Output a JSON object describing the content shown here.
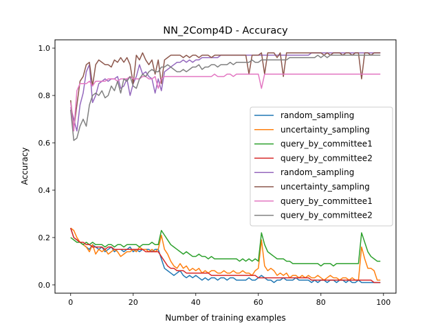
{
  "chart_data": {
    "type": "line",
    "title": "NN_2Comp4D - Accuracy",
    "xlabel": "Number of training examples",
    "ylabel": "Accuracy",
    "xlim": [
      -5,
      104
    ],
    "ylim": [
      -0.035,
      1.035
    ],
    "xticks": [
      0,
      20,
      40,
      60,
      80,
      100
    ],
    "yticks": [
      0.0,
      0.2,
      0.4,
      0.6,
      0.8,
      1.0
    ],
    "xtick_labels": [
      "0",
      "20",
      "40",
      "60",
      "80",
      "100"
    ],
    "ytick_labels": [
      "0.0",
      "0.2",
      "0.4",
      "0.6",
      "0.8",
      "1.0"
    ],
    "grid": false,
    "legend_position": "center-right",
    "x": [
      0,
      1,
      2,
      3,
      4,
      5,
      6,
      7,
      8,
      9,
      10,
      11,
      12,
      13,
      14,
      15,
      16,
      17,
      18,
      19,
      20,
      21,
      22,
      23,
      24,
      25,
      26,
      27,
      28,
      29,
      30,
      31,
      32,
      33,
      34,
      35,
      36,
      37,
      38,
      39,
      40,
      41,
      42,
      43,
      44,
      45,
      46,
      47,
      48,
      49,
      50,
      51,
      52,
      53,
      54,
      55,
      56,
      57,
      58,
      59,
      60,
      61,
      62,
      63,
      64,
      65,
      66,
      67,
      68,
      69,
      70,
      71,
      72,
      73,
      74,
      75,
      76,
      77,
      78,
      79,
      80,
      81,
      82,
      83,
      84,
      85,
      86,
      87,
      88,
      89,
      90,
      91,
      92,
      93,
      94,
      95,
      96,
      97,
      98,
      99
    ],
    "series": [
      {
        "name": "random_sampling",
        "color": "#1f77b4",
        "values": [
          0.24,
          0.2,
          0.19,
          0.18,
          0.17,
          0.16,
          0.15,
          0.17,
          0.16,
          0.15,
          0.16,
          0.14,
          0.15,
          0.16,
          0.14,
          0.15,
          0.15,
          0.14,
          0.15,
          0.16,
          0.14,
          0.15,
          0.14,
          0.15,
          0.15,
          0.15,
          0.14,
          0.15,
          0.15,
          0.11,
          0.07,
          0.06,
          0.05,
          0.04,
          0.05,
          0.06,
          0.04,
          0.03,
          0.04,
          0.03,
          0.04,
          0.03,
          0.02,
          0.03,
          0.02,
          0.03,
          0.03,
          0.02,
          0.03,
          0.03,
          0.02,
          0.03,
          0.03,
          0.02,
          0.02,
          0.02,
          0.02,
          0.03,
          0.02,
          0.02,
          0.03,
          0.04,
          0.03,
          0.02,
          0.02,
          0.01,
          0.02,
          0.02,
          0.03,
          0.02,
          0.02,
          0.02,
          0.03,
          0.02,
          0.02,
          0.02,
          0.02,
          0.01,
          0.02,
          0.01,
          0.02,
          0.02,
          0.01,
          0.02,
          0.02,
          0.01,
          0.02,
          0.02,
          0.01,
          0.02,
          0.01,
          0.01,
          0.02,
          0.01,
          0.01,
          0.01,
          0.01,
          0.01,
          0.01,
          0.01
        ]
      },
      {
        "name": "uncertainty_sampling",
        "color": "#ff7f0e",
        "values": [
          0.24,
          0.23,
          0.2,
          0.18,
          0.17,
          0.16,
          0.14,
          0.17,
          0.13,
          0.15,
          0.14,
          0.15,
          0.13,
          0.14,
          0.15,
          0.14,
          0.12,
          0.13,
          0.14,
          0.14,
          0.15,
          0.14,
          0.16,
          0.15,
          0.15,
          0.14,
          0.15,
          0.14,
          0.15,
          0.21,
          0.15,
          0.13,
          0.1,
          0.08,
          0.07,
          0.09,
          0.07,
          0.08,
          0.06,
          0.07,
          0.06,
          0.07,
          0.05,
          0.06,
          0.05,
          0.06,
          0.06,
          0.05,
          0.05,
          0.06,
          0.05,
          0.05,
          0.06,
          0.05,
          0.05,
          0.06,
          0.05,
          0.05,
          0.04,
          0.06,
          0.07,
          0.19,
          0.08,
          0.06,
          0.07,
          0.06,
          0.04,
          0.05,
          0.04,
          0.05,
          0.03,
          0.04,
          0.04,
          0.03,
          0.04,
          0.03,
          0.04,
          0.03,
          0.03,
          0.04,
          0.03,
          0.02,
          0.03,
          0.04,
          0.03,
          0.03,
          0.02,
          0.03,
          0.03,
          0.02,
          0.03,
          0.02,
          0.02,
          0.16,
          0.11,
          0.07,
          0.07,
          0.06,
          0.02,
          0.02
        ]
      },
      {
        "name": "query_by_committee1",
        "color": "#2ca02c",
        "values": [
          0.2,
          0.19,
          0.18,
          0.18,
          0.17,
          0.18,
          0.17,
          0.18,
          0.17,
          0.17,
          0.17,
          0.16,
          0.17,
          0.17,
          0.16,
          0.17,
          0.17,
          0.16,
          0.17,
          0.17,
          0.17,
          0.17,
          0.16,
          0.17,
          0.17,
          0.17,
          0.18,
          0.17,
          0.17,
          0.23,
          0.21,
          0.19,
          0.17,
          0.16,
          0.15,
          0.14,
          0.13,
          0.14,
          0.13,
          0.12,
          0.12,
          0.13,
          0.12,
          0.12,
          0.11,
          0.12,
          0.11,
          0.11,
          0.11,
          0.11,
          0.11,
          0.11,
          0.11,
          0.11,
          0.1,
          0.11,
          0.1,
          0.11,
          0.1,
          0.11,
          0.1,
          0.22,
          0.17,
          0.14,
          0.13,
          0.12,
          0.11,
          0.11,
          0.11,
          0.1,
          0.1,
          0.09,
          0.09,
          0.09,
          0.09,
          0.09,
          0.09,
          0.09,
          0.09,
          0.09,
          0.08,
          0.09,
          0.09,
          0.09,
          0.08,
          0.09,
          0.09,
          0.09,
          0.09,
          0.09,
          0.09,
          0.09,
          0.09,
          0.22,
          0.18,
          0.14,
          0.12,
          0.11,
          0.1,
          0.1
        ]
      },
      {
        "name": "query_by_committee2",
        "color": "#d62728",
        "values": [
          0.24,
          0.2,
          0.19,
          0.18,
          0.18,
          0.17,
          0.17,
          0.16,
          0.16,
          0.16,
          0.16,
          0.15,
          0.16,
          0.16,
          0.15,
          0.15,
          0.15,
          0.15,
          0.15,
          0.15,
          0.15,
          0.15,
          0.15,
          0.15,
          0.14,
          0.14,
          0.14,
          0.14,
          0.14,
          0.12,
          0.1,
          0.08,
          0.07,
          0.07,
          0.06,
          0.06,
          0.06,
          0.05,
          0.05,
          0.05,
          0.05,
          0.05,
          0.05,
          0.05,
          0.05,
          0.04,
          0.04,
          0.04,
          0.04,
          0.04,
          0.04,
          0.04,
          0.04,
          0.04,
          0.04,
          0.04,
          0.04,
          0.04,
          0.04,
          0.04,
          0.03,
          0.03,
          0.03,
          0.03,
          0.03,
          0.03,
          0.03,
          0.03,
          0.03,
          0.03,
          0.03,
          0.03,
          0.03,
          0.03,
          0.03,
          0.03,
          0.03,
          0.02,
          0.02,
          0.02,
          0.02,
          0.02,
          0.02,
          0.02,
          0.02,
          0.02,
          0.02,
          0.02,
          0.02,
          0.02,
          0.02,
          0.02,
          0.02,
          0.02,
          0.02,
          0.02,
          0.02,
          0.01,
          0.01,
          0.01
        ]
      },
      {
        "name": "random_sampling",
        "color": "#9467bd",
        "values": [
          0.75,
          0.7,
          0.65,
          0.76,
          0.81,
          0.9,
          0.93,
          0.77,
          0.8,
          0.85,
          0.86,
          0.87,
          0.86,
          0.87,
          0.87,
          0.88,
          0.83,
          0.84,
          0.87,
          0.8,
          0.85,
          0.88,
          0.93,
          0.89,
          0.9,
          0.88,
          0.87,
          0.81,
          0.87,
          0.82,
          0.9,
          0.91,
          0.92,
          0.93,
          0.94,
          0.94,
          0.95,
          0.94,
          0.95,
          0.94,
          0.95,
          0.95,
          0.96,
          0.96,
          0.96,
          0.96,
          0.96,
          0.96,
          0.97,
          0.97,
          0.97,
          0.97,
          0.97,
          0.97,
          0.97,
          0.97,
          0.97,
          0.97,
          0.97,
          0.97,
          0.97,
          0.97,
          0.97,
          0.97,
          0.97,
          0.97,
          0.97,
          0.97,
          0.97,
          0.97,
          0.97,
          0.97,
          0.97,
          0.97,
          0.97,
          0.97,
          0.97,
          0.98,
          0.98,
          0.98,
          0.98,
          0.98,
          0.98,
          0.98,
          0.98,
          0.98,
          0.98,
          0.98,
          0.98,
          0.98,
          0.98,
          0.98,
          0.98,
          0.98,
          0.98,
          0.98,
          0.98,
          0.98,
          0.98,
          0.98
        ]
      },
      {
        "name": "uncertainty_sampling",
        "color": "#8c564b",
        "values": [
          0.78,
          0.66,
          0.76,
          0.86,
          0.88,
          0.93,
          0.94,
          0.84,
          0.93,
          0.95,
          0.94,
          0.93,
          0.93,
          0.92,
          0.95,
          0.94,
          0.96,
          0.94,
          0.96,
          0.93,
          0.85,
          0.97,
          0.95,
          0.98,
          0.95,
          0.93,
          0.95,
          0.89,
          0.95,
          0.85,
          0.95,
          0.96,
          0.97,
          0.97,
          0.97,
          0.97,
          0.96,
          0.97,
          0.96,
          0.97,
          0.97,
          0.96,
          0.97,
          0.97,
          0.97,
          0.96,
          0.97,
          0.97,
          0.97,
          0.97,
          0.97,
          0.97,
          0.97,
          0.97,
          0.97,
          0.97,
          0.97,
          0.89,
          0.97,
          0.97,
          0.97,
          0.98,
          0.89,
          0.98,
          0.98,
          0.98,
          0.96,
          0.98,
          0.88,
          0.98,
          0.98,
          0.98,
          0.98,
          0.98,
          0.98,
          0.98,
          0.98,
          0.98,
          0.98,
          0.98,
          0.98,
          0.97,
          0.98,
          0.97,
          0.98,
          0.98,
          0.98,
          0.97,
          0.98,
          0.98,
          0.97,
          0.98,
          0.98,
          0.87,
          0.98,
          0.98,
          0.97,
          0.98,
          0.98,
          0.98
        ]
      },
      {
        "name": "query_by_committee1",
        "color": "#e377c2",
        "values": [
          0.77,
          0.65,
          0.82,
          0.85,
          0.85,
          0.85,
          0.86,
          0.84,
          0.86,
          0.86,
          0.86,
          0.86,
          0.87,
          0.87,
          0.87,
          0.86,
          0.87,
          0.87,
          0.87,
          0.88,
          0.87,
          0.87,
          0.87,
          0.88,
          0.88,
          0.87,
          0.87,
          0.88,
          0.83,
          0.87,
          0.88,
          0.88,
          0.88,
          0.88,
          0.88,
          0.88,
          0.88,
          0.88,
          0.88,
          0.88,
          0.88,
          0.88,
          0.88,
          0.88,
          0.88,
          0.88,
          0.89,
          0.88,
          0.88,
          0.88,
          0.89,
          0.89,
          0.88,
          0.89,
          0.89,
          0.89,
          0.89,
          0.89,
          0.89,
          0.89,
          0.89,
          0.83,
          0.89,
          0.89,
          0.89,
          0.89,
          0.89,
          0.89,
          0.89,
          0.89,
          0.89,
          0.89,
          0.89,
          0.89,
          0.89,
          0.89,
          0.89,
          0.89,
          0.89,
          0.89,
          0.89,
          0.89,
          0.89,
          0.89,
          0.89,
          0.89,
          0.89,
          0.89,
          0.89,
          0.89,
          0.89,
          0.89,
          0.89,
          0.89,
          0.89,
          0.89,
          0.89,
          0.89,
          0.89,
          0.89
        ]
      },
      {
        "name": "query_by_committee2",
        "color": "#7f7f7f",
        "values": [
          0.74,
          0.61,
          0.62,
          0.67,
          0.7,
          0.67,
          0.76,
          0.8,
          0.81,
          0.8,
          0.82,
          0.79,
          0.8,
          0.84,
          0.82,
          0.86,
          0.81,
          0.87,
          0.86,
          0.88,
          0.84,
          0.83,
          0.87,
          0.89,
          0.88,
          0.9,
          0.91,
          0.9,
          0.9,
          0.92,
          0.92,
          0.93,
          0.92,
          0.91,
          0.9,
          0.9,
          0.91,
          0.9,
          0.91,
          0.92,
          0.92,
          0.93,
          0.91,
          0.92,
          0.92,
          0.93,
          0.93,
          0.92,
          0.93,
          0.93,
          0.93,
          0.94,
          0.93,
          0.94,
          0.94,
          0.94,
          0.94,
          0.94,
          0.95,
          0.94,
          0.94,
          0.95,
          0.95,
          0.95,
          0.95,
          0.95,
          0.95,
          0.95,
          0.95,
          0.95,
          0.96,
          0.96,
          0.96,
          0.96,
          0.96,
          0.96,
          0.96,
          0.96,
          0.96,
          0.97,
          0.96,
          0.97,
          0.96,
          0.97,
          0.97,
          0.97,
          0.97,
          0.97,
          0.97,
          0.97,
          0.97,
          0.97,
          0.97,
          0.97,
          0.97,
          0.97,
          0.97,
          0.97,
          0.97,
          0.97
        ]
      }
    ]
  }
}
